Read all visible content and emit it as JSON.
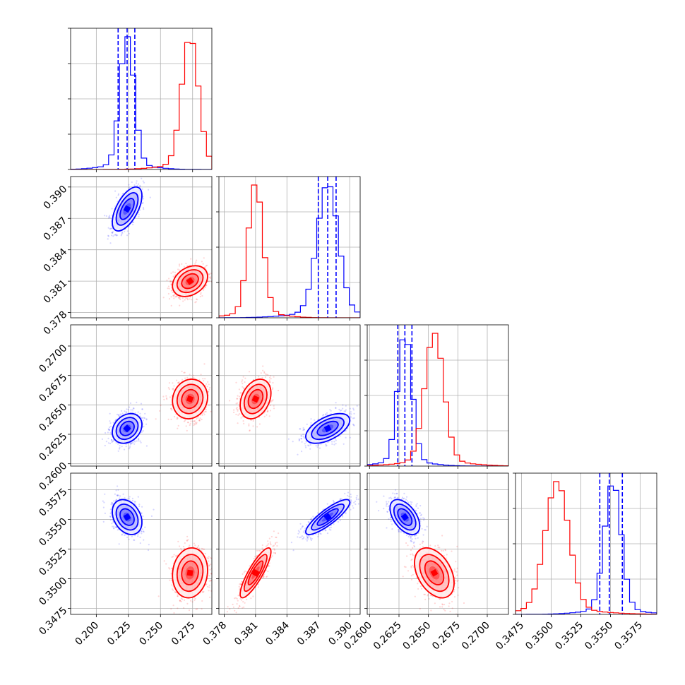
{
  "chart_data": {
    "type": "corner",
    "parameters": [
      {
        "key": "p1",
        "range": [
          0.18,
          0.29
        ],
        "ticks": [
          "0.200",
          "0.225",
          "0.250",
          "0.275"
        ]
      },
      {
        "key": "p2",
        "range": [
          0.3775,
          0.391
        ],
        "ticks": [
          "0.378",
          "0.381",
          "0.384",
          "0.387",
          "0.390"
        ]
      },
      {
        "key": "p3",
        "range": [
          0.2598,
          0.2718
        ],
        "ticks": [
          "0.2600",
          "0.2625",
          "0.2650",
          "0.2675",
          "0.2700"
        ]
      },
      {
        "key": "p4",
        "range": [
          0.347,
          0.3589
        ],
        "ticks": [
          "0.3475",
          "0.3500",
          "0.3525",
          "0.3550",
          "0.3575"
        ]
      }
    ],
    "series": [
      {
        "color": "#0000ff",
        "mean": [
          0.224,
          0.3879,
          0.263,
          0.3552
        ],
        "std": [
          0.0055,
          0.001,
          0.0006,
          0.0007
        ],
        "corr": [
          [
            1,
            0.6,
            0.25,
            -0.3
          ],
          [
            0.6,
            1,
            0.55,
            0.85
          ],
          [
            0.25,
            0.55,
            1,
            -0.5
          ],
          [
            -0.3,
            0.85,
            -0.5,
            1
          ]
        ],
        "quantiles": [
          [
            0.217,
            0.224,
            0.23
          ],
          [
            0.387,
            0.3879,
            0.3887
          ],
          [
            0.2624,
            0.263,
            0.2636
          ],
          [
            0.3541,
            0.3549,
            0.356
          ]
        ]
      },
      {
        "color": "#ff0000",
        "mean": [
          0.273,
          0.381,
          0.2655,
          0.3505
        ],
        "std": [
          0.0065,
          0.0007,
          0.0008,
          0.001
        ],
        "corr": [
          [
            1,
            0.3,
            0.1,
            0.1
          ],
          [
            0.3,
            1,
            0.3,
            0.85
          ],
          [
            0.1,
            0.3,
            1,
            -0.4
          ],
          [
            0.1,
            0.85,
            -0.4,
            1
          ]
        ]
      }
    ],
    "xtick_axis_labels": [
      "0.200",
      "0.225",
      "0.250",
      "0.275",
      "0.378",
      "0.381",
      "0.384",
      "0.387",
      "0.390",
      "0.2600",
      "0.2625",
      "0.2650",
      "0.2675",
      "0.2700",
      "0.3475",
      "0.3500",
      "0.3525",
      "0.3550",
      "0.3575"
    ],
    "grid": true,
    "legend": "none"
  }
}
